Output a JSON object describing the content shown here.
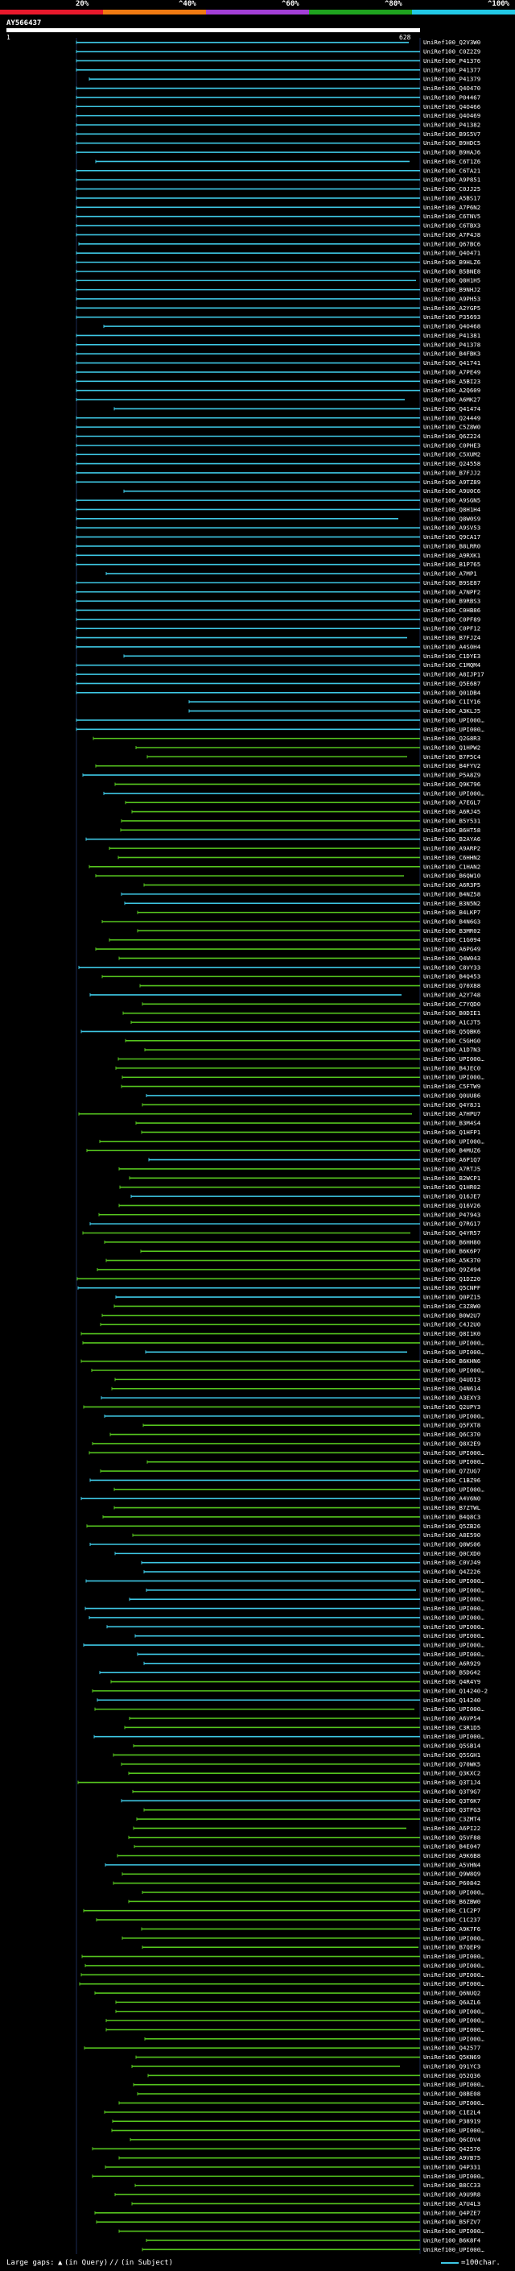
{
  "scale": {
    "labels": [
      {
        "text": "20%",
        "pos": 0.2
      },
      {
        "text": "^40%",
        "pos": 0.4
      },
      {
        "text": "^60%",
        "pos": 0.6
      },
      {
        "text": "^80%",
        "pos": 0.8
      },
      {
        "text": "^100%",
        "pos": 1.0
      }
    ],
    "colors": [
      "#e8192c",
      "#f07a12",
      "#a23fd6",
      "#1fa31f",
      "#22c9e6"
    ]
  },
  "query": {
    "id": "AY566437",
    "start": "1",
    "end": "628"
  },
  "colors": {
    "cyan": "#3ec7e4",
    "green": "#55c41e",
    "gap": "#ffffff"
  },
  "hit_ids": [
    "UniRef100_Q2V3W0",
    "UniRef100_C0Z2Z9",
    "UniRef100_P41376",
    "UniRef100_P41377",
    "UniRef100_P41379",
    "UniRef100_Q4O470",
    "UniRef100_P04467",
    "UniRef100_Q4O466",
    "UniRef100_Q4O469",
    "UniRef100_P41382",
    "UniRef100_B9S5V7",
    "UniRef100_B9HDC5",
    "UniRef100_B9HAJ6",
    "UniRef100_C6T1Z6",
    "UniRef100_C6TA21",
    "UniRef100_A9P851",
    "UniRef100_C0JJ25",
    "UniRef100_A5BS17",
    "UniRef100_A7P6N2",
    "UniRef100_C6TNV5",
    "UniRef100_C6TBX3",
    "UniRef100_A7P4J8",
    "UniRef100_Q67BC6",
    "UniRef100_Q4O471",
    "UniRef100_B9HLZ6",
    "UniRef100_B5BNE8",
    "UniRef100_Q8H1H5",
    "UniRef100_B9NHJ2",
    "UniRef100_A9PH53",
    "UniRef100_A2YGP5",
    "UniRef100_P35693",
    "UniRef100_Q4O468",
    "UniRef100_P41381",
    "UniRef100_P41378",
    "UniRef100_B4FBK3",
    "UniRef100_Q41741",
    "UniRef100_A7PE49",
    "UniRef100_A5BI23",
    "UniRef100_A2Q609",
    "UniRef100_A6MK27",
    "UniRef100_Q41474",
    "UniRef100_Q24449",
    "UniRef100_C5Z8W0",
    "UniRef100_Q6Z224",
    "UniRef100_C0PHE3",
    "UniRef100_C5XUM2",
    "UniRef100_Q24558",
    "UniRef100_B7FJJ2",
    "UniRef100_A9TZ89",
    "UniRef100_A9U0C6",
    "UniRef100_A9SGN5",
    "UniRef100_Q8H1H4",
    "UniRef100_Q8W0S9",
    "UniRef100_A9SV53",
    "UniRef100_Q9CA17",
    "UniRef100_B8LRR0",
    "UniRef100_A9RXK1",
    "UniRef100_B1P765",
    "UniRef100_A7MP1",
    "UniRef100_B9SE87",
    "UniRef100_A7NPF2",
    "UniRef100_B9RBS3",
    "UniRef100_C0HB86",
    "UniRef100_C0PF89",
    "UniRef100_C0PF12",
    "UniRef100_B7FJZ4",
    "UniRef100_A4S0H4",
    "UniRef100_C1DYE3",
    "UniRef100_C1MQM4",
    "UniRef100_A8IJP17",
    "UniRef100_Q5E687",
    "UniRef100_Q01DB4",
    "UniRef100_C1IY16",
    "UniRef100_A3KLJ5",
    "UniRef100_UPI000…",
    "UniRef100_UPI000…",
    "UniRef100_Q2G8R3",
    "UniRef100_Q1HPW2",
    "UniRef100_B7P5C4",
    "UniRef100_B4FYV2",
    "UniRef100_P5A8Z9",
    "UniRef100_Q9K796",
    "UniRef100_UPI000…",
    "UniRef100_A7EGL7",
    "UniRef100_A6RJ45",
    "UniRef100_B5Y531",
    "UniRef100_B6HT58",
    "UniRef100_B2AYA6",
    "UniRef100_A9ARP2",
    "UniRef100_C6HHN2",
    "UniRef100_C1HAN2",
    "UniRef100_B6QW10",
    "UniRef100_A6R3P5",
    "UniRef100_B4NZ58",
    "UniRef100_B3N5N2",
    "UniRef100_B4LKP7",
    "UniRef100_B4N6G3",
    "UniRef100_B3MR02",
    "UniRef100_C1G094",
    "UniRef100_A6PG49",
    "UniRef100_Q4W043",
    "UniRef100_C8VY33",
    "UniRef100_B4Q453",
    "UniRef100_Q70X88",
    "UniRef100_A2Y748",
    "UniRef100_C7YQD0",
    "UniRef100_B0DIE1",
    "UniRef100_A1CJT5",
    "UniRef100_Q5QBK6",
    "UniRef100_C5GHG0",
    "UniRef100_A1D7N3",
    "UniRef100_UPI000…",
    "UniRef100_B4JEC0",
    "UniRef100_UPI000…",
    "UniRef100_C5FTW9",
    "UniRef100_Q0UU86",
    "UniRef100_Q4Y8J1",
    "UniRef100_A7HPU7",
    "UniRef100_B3M4S4",
    "UniRef100_Q1HFP1",
    "UniRef100_UPI000…",
    "UniRef100_B4MUZ6",
    "UniRef100_A6P1Q7",
    "UniRef100_A7RTJ5",
    "UniRef100_B2WCP1",
    "UniRef100_Q1HR02",
    "UniRef100_Q16JE7",
    "UniRef100_Q16V26",
    "UniRef100_P47943",
    "UniRef100_Q7RG17",
    "UniRef100_Q4YR57",
    "UniRef100_B6HH80",
    "UniRef100_B6K6P7",
    "UniRef100_A5K370",
    "UniRef100_Q9Z494",
    "UniRef100_Q1DZ20",
    "UniRef100_Q5CNPF",
    "UniRef100_Q0PZ15",
    "UniRef100_C3Z8W0",
    "UniRef100_B0W2U7",
    "UniRef100_C4J2U0",
    "UniRef100_Q8I1K0",
    "UniRef100_UPI000…",
    "UniRef100_UPI000…",
    "UniRef100_B6KHN6",
    "UniRef100_UPI000…",
    "UniRef100_Q4UDI3",
    "UniRef100_Q4N614",
    "UniRef100_A3EXY3",
    "UniRef100_Q2UPY3",
    "UniRef100_UPI000…",
    "UniRef100_Q5FXT8",
    "UniRef100_Q6C370",
    "UniRef100_Q8X2E9",
    "UniRef100_UPI000…",
    "UniRef100_UPI000…",
    "UniRef100_Q7ZUG7",
    "UniRef100_C1BZ96",
    "UniRef100_UPI000…",
    "UniRef100_A4V6N0",
    "UniRef100_B7ZTWL",
    "UniRef100_B4Q8C3",
    "UniRef100_Q5ZB26",
    "UniRef100_A8E590",
    "UniRef100_Q8WS06",
    "UniRef100_Q0CXD0",
    "UniRef100_C0VJ49",
    "UniRef100_Q4Z226",
    "UniRef100_UPI000…",
    "UniRef100_UPI000…",
    "UniRef100_UPI000…",
    "UniRef100_UPI000…",
    "UniRef100_UPI000…",
    "UniRef100_UPI000…",
    "UniRef100_UPI000…",
    "UniRef100_UPI000…",
    "UniRef100_UPI000…",
    "UniRef100_A6R929",
    "UniRef100_B5DG42",
    "UniRef100_Q4R4Y9",
    "UniRef100_Q14240-2",
    "UniRef100_Q14240",
    "UniRef100_UPI000…",
    "UniRef100_A6VP54",
    "UniRef100_C3R1D5",
    "UniRef100_UPI000…",
    "UniRef100_Q5SB14",
    "UniRef100_Q5SGH1",
    "UniRef100_Q70WK5",
    "UniRef100_Q3KXC2",
    "UniRef100_Q3T1J4",
    "UniRef100_Q3T9G7",
    "UniRef100_Q3T6K7",
    "UniRef100_Q3TFG3",
    "UniRef100_C3ZMT4",
    "UniRef100_A6PI22",
    "UniRef100_Q5VF88",
    "UniRef100_B4E047",
    "UniRef100_A9K6B8",
    "UniRef100_A5VHN4",
    "UniRef100_Q9W8Q9",
    "UniRef100_P60842",
    "UniRef100_UPI000…",
    "UniRef100_B6ZBW0",
    "UniRef100_C1C2P7",
    "UniRef100_C1C237",
    "UniRef100_A9K7F6",
    "UniRef100_UPI000…",
    "UniRef100_B7QEP9",
    "UniRef100_UPI000…",
    "UniRef100_UPI000…",
    "UniRef100_UPI000…",
    "UniRef100_UPI000…",
    "UniRef100_Q6NUQ2",
    "UniRef100_Q6AZL6",
    "UniRef100_UPI000…",
    "UniRef100_UPI000…",
    "UniRef100_UPI000…",
    "UniRef100_UPI000…",
    "UniRef100_Q42577",
    "UniRef100_Q5KN69",
    "UniRef100_Q91YC3",
    "UniRef100_Q52Q36",
    "UniRef100_UPI000…",
    "UniRef100_Q8BE08",
    "UniRef100_UPI000…",
    "UniRef100_C1E2L4",
    "UniRef100_P38919",
    "UniRef100_UPI000…",
    "UniRef100_Q6CDV4",
    "UniRef100_Q42576",
    "UniRef100_A9VB75",
    "UniRef100_Q4P331",
    "UniRef100_UPI000…",
    "UniRef100_B8CC33",
    "UniRef100_A9U9R8",
    "UniRef100_A7U4L3",
    "UniRef100_Q4PZE7",
    "UniRef100_B5FZV7",
    "UniRef100_UPI000…",
    "UniRef100_B6K8F4",
    "UniRef100_UPI000…"
  ],
  "footer": {
    "large_gaps": "Large gaps:",
    "in_query": "(in Query)",
    "slash": "/",
    "in_subject": "(in Subject)",
    "legend": "=100char."
  }
}
